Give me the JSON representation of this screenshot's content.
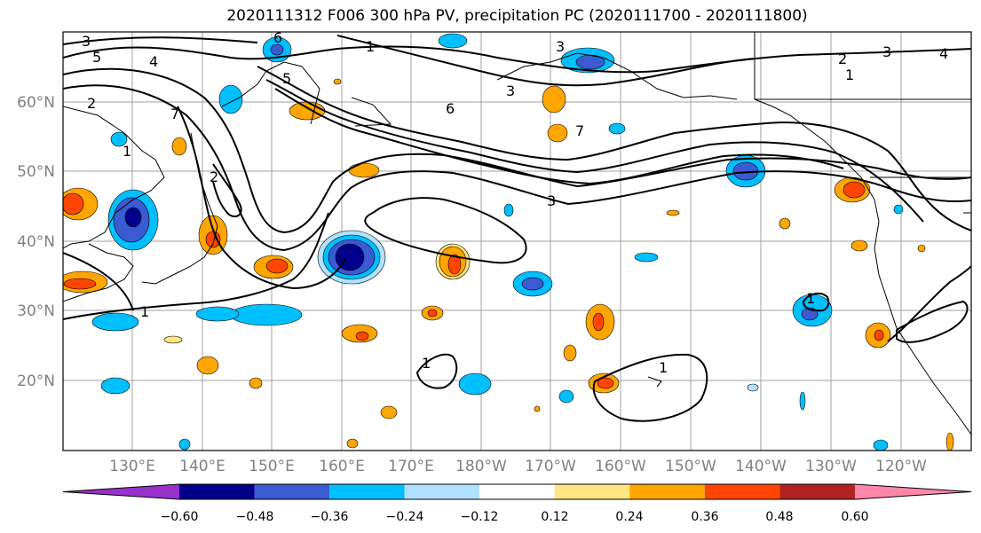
{
  "title": "2020111312 F006 300 hPa PV, precipitation PC (2020111700 - 2020111800)",
  "lat_labels": [
    "60°N",
    "50°N",
    "40°N",
    "30°N",
    "20°N"
  ],
  "lon_labels": [
    "130°E",
    "140°E",
    "150°E",
    "160°E",
    "170°E",
    "180°W",
    "170°W",
    "160°W",
    "150°W",
    "140°W",
    "130°W",
    "120°W"
  ],
  "colorbar": {
    "ticks": [
      "−0.60",
      "−0.48",
      "−0.36",
      "−0.24",
      "−0.12",
      "0.12",
      "0.24",
      "0.36",
      "0.48",
      "0.60"
    ],
    "colors": [
      "#9932cc",
      "#00008b",
      "#3a5bd1",
      "#00bfff",
      "#b0e2ff",
      "#ffffff",
      "#ffe680",
      "#ffa500",
      "#ff4500",
      "#b22222",
      "#ff88aa"
    ]
  },
  "contour_labels": [
    "3",
    "5",
    "4",
    "2",
    "7",
    "1",
    "6",
    "5",
    "1",
    "3",
    "2",
    "3",
    "4",
    "1",
    "3",
    "6",
    "7",
    "3",
    "2",
    "1",
    "1",
    "1",
    "1"
  ]
}
